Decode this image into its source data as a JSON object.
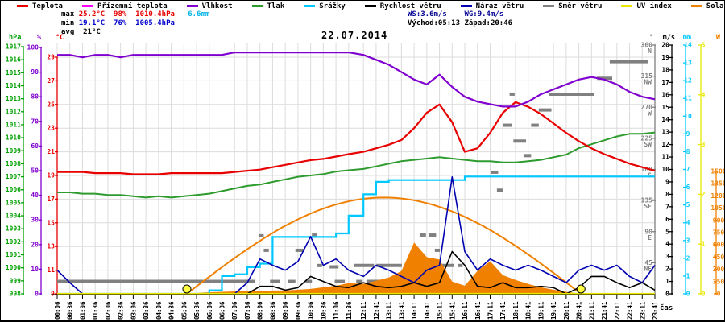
{
  "title": "22.07.2014",
  "xaxis_label": "čas",
  "legend": {
    "items": [
      {
        "label": "Teplota",
        "color": "#e80000"
      },
      {
        "label": "Přízemní teplota",
        "color": "#ff00ff"
      },
      {
        "label": "Vlhkost",
        "color": "#8000d0"
      },
      {
        "label": "Tlak",
        "color": "#2e9b2e"
      },
      {
        "label": "Srážky",
        "color": "#00c8ff"
      },
      {
        "label": "Rychlost větru",
        "color": "#000000"
      },
      {
        "label": "Náraz větru",
        "color": "#0000b0"
      },
      {
        "label": "Směr větru",
        "color": "#808080"
      },
      {
        "label": "UV index",
        "color": "#e8e800"
      },
      {
        "label": "Solar",
        "color": "#f08000"
      }
    ]
  },
  "stats": {
    "max_label": "max",
    "max_temp": "25.2°C",
    "max_hum": "98%",
    "max_pres": "1010.4hPa",
    "max_rain": "6.6mm",
    "min_label": "min",
    "min_temp": "19.1°C",
    "min_hum": "76%",
    "min_pres": "1005.4hPa",
    "avg_label": "avg",
    "avg_temp": "21°C",
    "ws": "WS:3.6m/s",
    "wg": "WG:9.4m/s",
    "sunrise": "Východ:05:13",
    "sunset": "Západ:20:46"
  },
  "chart_data": {
    "type": "line",
    "title": "22.07.2014",
    "xlabel": "čas",
    "times": [
      "00:06",
      "00:36",
      "01:06",
      "01:36",
      "02:06",
      "02:36",
      "03:06",
      "03:36",
      "04:06",
      "04:36",
      "05:06",
      "05:36",
      "06:06",
      "06:36",
      "07:06",
      "07:36",
      "08:06",
      "08:36",
      "09:06",
      "09:36",
      "10:06",
      "10:36",
      "11:06",
      "11:36",
      "12:11",
      "12:41",
      "13:11",
      "13:41",
      "14:11",
      "14:41",
      "15:11",
      "15:41",
      "16:11",
      "16:41",
      "17:11",
      "17:41",
      "18:11",
      "18:41",
      "19:11",
      "19:41",
      "20:11",
      "20:41",
      "21:11",
      "21:41",
      "22:11",
      "22:41",
      "23:11",
      "23:41"
    ],
    "axes": [
      {
        "id": "hPa",
        "unit": "hPa",
        "color": "#00a000",
        "min": 998,
        "max": 1017,
        "step": 1
      },
      {
        "id": "%",
        "unit": "%",
        "color": "#8000d0",
        "min": 0,
        "max": 100,
        "step": 10
      },
      {
        "id": "°C",
        "unit": "°C",
        "color": "#e80000",
        "min": 9,
        "max": 29,
        "step": 2
      },
      {
        "id": "°",
        "unit": "°",
        "color": "#808080",
        "min": 0,
        "max": 360,
        "step": 45
      },
      {
        "id": "m/s",
        "unit": "m/s",
        "color": "#000000",
        "min": 0,
        "max": 20,
        "step": 1
      },
      {
        "id": "mm",
        "unit": "mm",
        "color": "#00c8ff",
        "min": 0,
        "max": 14,
        "step": 1
      },
      {
        "id": "UV",
        "unit": "",
        "color": "#e8e800",
        "min": 0,
        "max": 5,
        "step": 1
      },
      {
        "id": "W",
        "unit": "W",
        "color": "#f08000",
        "min": 0,
        "max": 1500,
        "step": 150
      }
    ],
    "dir_letters": {
      "360": "N",
      "315": "NW",
      "270": "W",
      "225": "SW",
      "180": "S",
      "135": "SE",
      "90": "E",
      "45": "NE"
    },
    "series": [
      {
        "key": "teplota",
        "name": "Teplota",
        "color": "#e80000",
        "axis": "°C",
        "render": "line",
        "width": 2.2,
        "values": [
          19.3,
          19.3,
          19.3,
          19.2,
          19.2,
          19.2,
          19.1,
          19.1,
          19.1,
          19.2,
          19.2,
          19.2,
          19.2,
          19.2,
          19.3,
          19.4,
          19.5,
          19.7,
          19.9,
          20.1,
          20.3,
          20.4,
          20.6,
          20.8,
          21.0,
          21.3,
          21.6,
          22.0,
          23.0,
          24.3,
          25.0,
          23.5,
          21.0,
          21.3,
          22.6,
          24.3,
          25.2,
          24.8,
          24.2,
          23.4,
          22.6,
          21.9,
          21.3,
          20.8,
          20.4,
          20.0,
          19.7,
          19.4
        ]
      },
      {
        "key": "prizemni",
        "name": "Přízemní teplota",
        "color": "#ff00ff",
        "axis": "°C",
        "render": "line",
        "width": 2,
        "values": []
      },
      {
        "key": "vlhkost",
        "name": "Vlhkost",
        "color": "#8000d0",
        "axis": "%",
        "render": "line",
        "width": 2.2,
        "values": [
          97,
          97,
          96,
          97,
          97,
          96,
          97,
          97,
          97,
          97,
          97,
          97,
          97,
          97,
          98,
          98,
          98,
          98,
          98,
          98,
          98,
          98,
          98,
          98,
          97,
          95,
          93,
          90,
          87,
          85,
          89,
          84,
          80,
          78,
          77,
          76,
          76,
          78,
          81,
          83,
          85,
          87,
          88,
          87,
          85,
          82,
          80,
          79
        ]
      },
      {
        "key": "tlak",
        "name": "Tlak",
        "color": "#2e9b2e",
        "axis": "hPa",
        "render": "line",
        "width": 2,
        "values": [
          1005.8,
          1005.8,
          1005.7,
          1005.7,
          1005.6,
          1005.6,
          1005.5,
          1005.4,
          1005.5,
          1005.4,
          1005.5,
          1005.6,
          1005.7,
          1005.9,
          1006.1,
          1006.3,
          1006.4,
          1006.6,
          1006.8,
          1007.0,
          1007.1,
          1007.2,
          1007.4,
          1007.5,
          1007.6,
          1007.8,
          1008.0,
          1008.2,
          1008.3,
          1008.4,
          1008.5,
          1008.4,
          1008.3,
          1008.2,
          1008.2,
          1008.1,
          1008.1,
          1008.2,
          1008.3,
          1008.5,
          1008.7,
          1009.2,
          1009.5,
          1009.8,
          1010.1,
          1010.3,
          1010.3,
          1010.4
        ]
      },
      {
        "key": "srazky",
        "name": "Srážky",
        "color": "#00c8ff",
        "axis": "mm",
        "render": "step",
        "width": 2.2,
        "values": [
          0,
          0,
          0,
          0,
          0,
          0,
          0,
          0,
          0,
          0,
          0,
          0,
          0.2,
          1.0,
          1.1,
          1.5,
          1.7,
          3.2,
          3.2,
          3.2,
          3.2,
          3.2,
          3.4,
          4.4,
          5.6,
          6.3,
          6.4,
          6.4,
          6.4,
          6.4,
          6.4,
          6.4,
          6.6,
          6.6,
          6.6,
          6.6,
          6.6,
          6.6,
          6.6,
          6.6,
          6.6,
          6.6,
          6.6,
          6.6,
          6.6,
          6.6,
          6.6,
          6.6
        ]
      },
      {
        "key": "rychlost",
        "name": "Rychlost větru",
        "color": "#000000",
        "axis": "m/s",
        "render": "line",
        "width": 1.6,
        "values": [
          0,
          0,
          0,
          0,
          0,
          0,
          0,
          0,
          0,
          0,
          0,
          0,
          0,
          0,
          0,
          0,
          0.6,
          0.6,
          0.3,
          0.5,
          1.4,
          1.0,
          0.6,
          0.5,
          0.9,
          0.6,
          0.5,
          0.6,
          0.9,
          0.6,
          0.9,
          3.4,
          2.3,
          0.6,
          0.5,
          0.9,
          0.5,
          0.5,
          0.6,
          0.5,
          0,
          0.5,
          1.4,
          1.4,
          0.9,
          0.5,
          0.9,
          0.3
        ]
      },
      {
        "key": "naraz",
        "name": "Náraz větru",
        "color": "#0000b0",
        "axis": "m/s",
        "render": "line",
        "width": 1.6,
        "values": [
          1.9,
          0.9,
          0,
          0,
          0,
          0,
          0,
          0,
          0,
          0,
          0,
          0,
          0,
          0,
          0,
          0.9,
          2.8,
          2.3,
          1.9,
          2.6,
          4.6,
          2.3,
          2.8,
          1.9,
          1.4,
          2.3,
          1.9,
          1.4,
          0.9,
          1.9,
          2.3,
          9.4,
          3.4,
          1.9,
          2.8,
          2.3,
          1.9,
          2.3,
          1.9,
          1.4,
          0.9,
          1.9,
          2.3,
          1.9,
          2.3,
          1.4,
          0.9,
          2.3
        ]
      },
      {
        "key": "uv",
        "name": "UV index",
        "color": "#e8e800",
        "axis": "UV",
        "render": "line",
        "width": 2.2,
        "values": [
          0,
          0,
          0,
          0,
          0,
          0,
          0,
          0,
          0,
          0,
          0,
          0,
          0,
          0,
          0,
          0,
          0,
          0,
          0,
          0,
          0,
          0,
          0,
          0,
          0,
          0,
          0,
          0,
          0,
          0,
          0,
          0,
          0,
          0,
          0,
          0,
          0,
          0,
          0,
          0,
          0,
          0,
          0,
          0,
          0,
          0,
          0,
          0
        ]
      },
      {
        "key": "solar",
        "name": "Solar",
        "color": "#f08000",
        "axis": "W",
        "render": "area",
        "width": 1,
        "values": [
          0,
          0,
          0,
          0,
          0,
          0,
          0,
          0,
          0,
          0,
          0,
          10,
          20,
          25,
          30,
          30,
          35,
          40,
          40,
          50,
          60,
          80,
          100,
          130,
          120,
          160,
          200,
          280,
          630,
          450,
          420,
          150,
          100,
          280,
          400,
          230,
          170,
          120,
          80,
          50,
          25,
          5,
          0,
          0,
          0,
          0,
          0,
          0
        ]
      }
    ],
    "solar_theoretical": {
      "sunrise": "05:13",
      "sunset": "20:46",
      "peak_w": 1180
    },
    "wind_dir_segments": [
      [
        0.1,
        7.9,
        18
      ],
      [
        8.05,
        8.25,
        84
      ],
      [
        8.25,
        8.45,
        63
      ],
      [
        8.5,
        8.9,
        18
      ],
      [
        9.2,
        9.5,
        18
      ],
      [
        9.5,
        9.85,
        63
      ],
      [
        9.9,
        10.15,
        18
      ],
      [
        10.15,
        10.35,
        85
      ],
      [
        10.35,
        10.55,
        41
      ],
      [
        10.85,
        11.2,
        39
      ],
      [
        11.05,
        11.45,
        18
      ],
      [
        11.8,
        12.6,
        41
      ],
      [
        12.7,
        13.7,
        41
      ],
      [
        11.9,
        12.15,
        18
      ],
      [
        12.3,
        13.1,
        18
      ],
      [
        13.2,
        14.0,
        18
      ],
      [
        13.95,
        14.35,
        41
      ],
      [
        14.4,
        14.65,
        85
      ],
      [
        14.75,
        15.05,
        85
      ],
      [
        15.0,
        15.2,
        63
      ],
      [
        15.2,
        15.75,
        41
      ],
      [
        15.9,
        16.1,
        41
      ],
      [
        17.2,
        17.5,
        176
      ],
      [
        17.45,
        17.7,
        150
      ],
      [
        17.7,
        18.05,
        244
      ],
      [
        17.95,
        18.15,
        289
      ],
      [
        18.1,
        18.6,
        221
      ],
      [
        18.5,
        18.8,
        200
      ],
      [
        18.8,
        19.1,
        244
      ],
      [
        19.1,
        19.6,
        266
      ],
      [
        19.5,
        21.3,
        289
      ],
      [
        21.4,
        22.0,
        312
      ],
      [
        21.9,
        23.4,
        336
      ]
    ],
    "sun_markers": [
      "05:13",
      "20:46"
    ]
  }
}
